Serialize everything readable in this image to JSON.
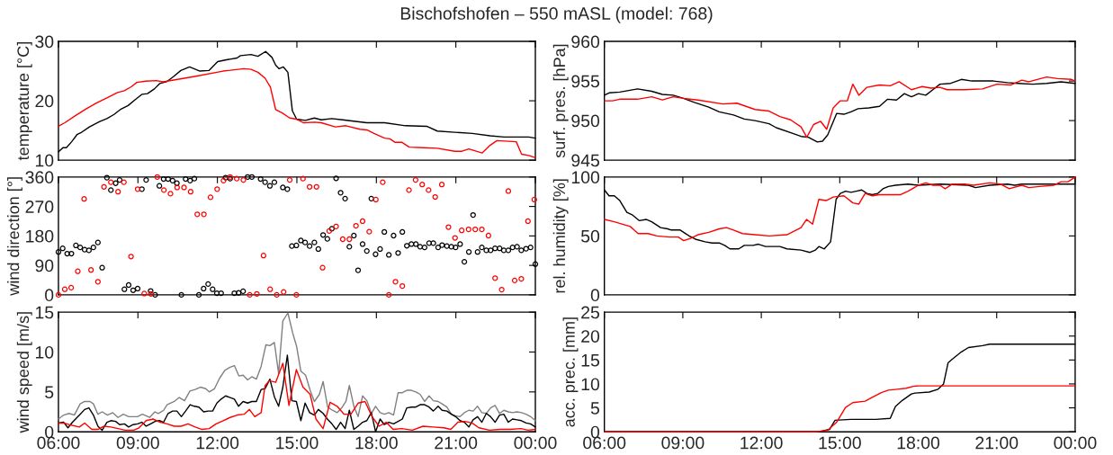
{
  "chart_data": [
    {
      "type": "line",
      "title": "Bischofshofen – 550 mASL (model: 768)",
      "ylabel": "temperature [°C]",
      "xlim": [
        6,
        24
      ],
      "xticks": [
        {
          "value": 6,
          "label": null
        },
        {
          "value": 9,
          "label": null
        },
        {
          "value": 12,
          "label": null
        },
        {
          "value": 15,
          "label": null
        },
        {
          "value": 18,
          "label": null
        },
        {
          "value": 21,
          "label": null
        },
        {
          "value": 24,
          "label": null
        }
      ],
      "ylim": [
        10,
        30
      ],
      "yticks": [
        10,
        20,
        30
      ],
      "tick_labels": "y",
      "series": [
        {
          "color": "#000000",
          "x": [
            6.0,
            6.17,
            6.3,
            6.5,
            6.7,
            6.84,
            7.17,
            7.56,
            7.83,
            8.1,
            8.36,
            8.63,
            8.9,
            9.16,
            9.36,
            9.62,
            9.82,
            10.08,
            10.35,
            10.62,
            10.95,
            11.34,
            11.68,
            12.01,
            12.34,
            12.74,
            12.87,
            13.27,
            13.53,
            13.82,
            14.06,
            14.2,
            14.33,
            14.49,
            14.66,
            14.83,
            14.99,
            15.32,
            15.66,
            15.92,
            16.32,
            16.72,
            17.64,
            18.31,
            19.1,
            19.9,
            20.3,
            20.96,
            21.62,
            22.29,
            22.82,
            23.75,
            24.0
          ],
          "values": [
            11.4,
            12.1,
            12.1,
            13.1,
            14.3,
            14.6,
            15.6,
            16.5,
            17.0,
            17.7,
            18.6,
            19.2,
            20.2,
            21.1,
            21.2,
            22.0,
            22.9,
            23.2,
            24.1,
            25.1,
            25.7,
            25.0,
            25.1,
            26.6,
            26.9,
            27.2,
            27.6,
            27.8,
            27.5,
            28.3,
            27.3,
            26.0,
            25.4,
            25.7,
            24.8,
            18.3,
            16.9,
            16.7,
            17.1,
            16.8,
            17.0,
            16.8,
            16.3,
            16.3,
            15.8,
            15.7,
            14.9,
            14.7,
            14.5,
            14.1,
            13.9,
            13.9,
            13.7
          ]
        },
        {
          "color": "#ff0000",
          "x": [
            6.0,
            6.24,
            6.64,
            7.03,
            7.43,
            7.83,
            8.23,
            8.49,
            8.76,
            8.96,
            9.29,
            9.69,
            9.95,
            11.15,
            12.21,
            13.0,
            13.27,
            13.53,
            13.8,
            14.0,
            14.2,
            14.46,
            14.73,
            14.99,
            15.26,
            15.66,
            15.92,
            16.45,
            16.85,
            17.38,
            17.64,
            17.91,
            18.31,
            18.51,
            18.71,
            18.97,
            19.24,
            19.77,
            20.3,
            20.96,
            21.23,
            21.49,
            21.99,
            22.29,
            22.55,
            23.28,
            23.48,
            23.75,
            24.0
          ],
          "values": [
            15.7,
            16.3,
            17.5,
            18.6,
            19.6,
            20.5,
            21.4,
            21.7,
            22.4,
            23.1,
            23.3,
            23.4,
            23.2,
            24.1,
            25.0,
            25.4,
            25.3,
            24.8,
            23.8,
            22.3,
            18.5,
            17.9,
            17.1,
            16.9,
            16.3,
            16.4,
            16.3,
            15.6,
            15.8,
            15.2,
            15.1,
            14.5,
            13.7,
            13.6,
            13.0,
            13.0,
            12.2,
            12.1,
            12.0,
            11.5,
            11.5,
            11.9,
            11.2,
            12.5,
            13.3,
            13.1,
            11.0,
            10.8,
            10.4
          ]
        }
      ]
    },
    {
      "type": "line",
      "ylabel": "surf. pres. [hPa]",
      "xlim": [
        6,
        24
      ],
      "xticks": [
        {
          "value": 6,
          "label": null
        },
        {
          "value": 9,
          "label": null
        },
        {
          "value": 12,
          "label": null
        },
        {
          "value": 15,
          "label": null
        },
        {
          "value": 18,
          "label": null
        },
        {
          "value": 21,
          "label": null
        },
        {
          "value": 24,
          "label": null
        }
      ],
      "ylim": [
        945,
        960
      ],
      "yticks": [
        945,
        950,
        955,
        960
      ],
      "tick_labels": "y",
      "series": [
        {
          "color": "#000000",
          "x": [
            6.0,
            6.18,
            6.59,
            7.27,
            7.81,
            8.22,
            8.63,
            9.03,
            9.44,
            9.99,
            10.39,
            10.94,
            11.35,
            11.76,
            12.3,
            12.57,
            13.18,
            13.52,
            13.8,
            14.14,
            14.34,
            14.54,
            14.88,
            15.16,
            15.43,
            15.7,
            16.11,
            16.52,
            16.83,
            17.17,
            17.47,
            17.74,
            18.01,
            18.29,
            18.56,
            18.83,
            19.24,
            19.65,
            20.05,
            20.87,
            21.41,
            21.82,
            22.37,
            22.91,
            23.46,
            24.0
          ],
          "values": [
            953.2,
            953.5,
            953.6,
            954.0,
            953.7,
            953.3,
            953.2,
            952.8,
            952.3,
            951.7,
            951.1,
            950.7,
            950.2,
            950.0,
            949.6,
            949.1,
            948.4,
            948.0,
            947.9,
            947.3,
            947.4,
            948.2,
            950.9,
            950.8,
            951.1,
            951.5,
            951.6,
            951.8,
            952.7,
            952.6,
            953.4,
            953.0,
            953.4,
            953.2,
            953.9,
            954.6,
            954.7,
            955.2,
            955.0,
            955.0,
            954.8,
            954.7,
            954.6,
            954.7,
            954.9,
            954.7
          ]
        },
        {
          "color": "#ff0000",
          "x": [
            6.0,
            6.31,
            6.59,
            7.27,
            7.81,
            8.22,
            8.63,
            9.03,
            9.58,
            10.53,
            11.07,
            11.76,
            12.3,
            12.71,
            13.12,
            13.52,
            13.74,
            14.0,
            14.27,
            14.5,
            14.75,
            15.02,
            15.29,
            15.5,
            15.73,
            16.04,
            16.52,
            16.93,
            17.27,
            17.74,
            18.15,
            18.49,
            18.83,
            19.1,
            19.78,
            20.46,
            21.01,
            21.55,
            21.96,
            22.23,
            22.91,
            23.32,
            23.86,
            24.0
          ],
          "values": [
            952.5,
            952.5,
            952.7,
            952.7,
            953.0,
            952.6,
            953.0,
            952.8,
            952.6,
            952.1,
            952.2,
            951.4,
            951.2,
            950.5,
            950.1,
            949.2,
            947.9,
            949.5,
            949.9,
            948.9,
            951.6,
            952.5,
            952.5,
            954.6,
            953.2,
            954.2,
            954.5,
            954.4,
            954.9,
            953.9,
            954.3,
            954.1,
            954.2,
            953.9,
            953.9,
            954.0,
            954.6,
            954.5,
            955.1,
            954.9,
            955.5,
            955.3,
            955.2,
            955.0
          ]
        }
      ]
    },
    {
      "type": "scatter",
      "ylabel": "wind direction [°]",
      "marker": "circle",
      "xlim": [
        6,
        24
      ],
      "xticks": [
        {
          "value": 6,
          "label": null
        },
        {
          "value": 9,
          "label": null
        },
        {
          "value": 12,
          "label": null
        },
        {
          "value": 15,
          "label": null
        },
        {
          "value": 18,
          "label": null
        },
        {
          "value": 21,
          "label": null
        },
        {
          "value": 24,
          "label": null
        }
      ],
      "ylim": [
        0,
        360
      ],
      "yticks": [
        0,
        90,
        180,
        270,
        360
      ],
      "tick_labels": "y",
      "series": [
        {
          "color": "#000000",
          "x": [
            6.0,
            6.16,
            6.33,
            6.49,
            6.66,
            6.82,
            6.99,
            7.15,
            7.32,
            7.49,
            7.65,
            7.83,
            7.98,
            8.16,
            8.31,
            8.49,
            8.65,
            8.82,
            8.99,
            9.15,
            9.31,
            9.48,
            9.65,
            9.81,
            9.97,
            10.14,
            10.31,
            10.47,
            10.64,
            10.8,
            10.97,
            11.13,
            11.3,
            11.48,
            11.65,
            11.82,
            11.98,
            12.14,
            12.31,
            12.48,
            12.64,
            12.8,
            12.97,
            13.14,
            13.3,
            13.63,
            13.8,
            13.98,
            14.15,
            14.47,
            14.64,
            14.81,
            14.98,
            15.15,
            15.31,
            15.48,
            15.66,
            15.81,
            15.99,
            16.15,
            16.32,
            16.48,
            16.65,
            16.82,
            16.98,
            17.15,
            17.31,
            17.48,
            17.64,
            17.81,
            17.97,
            18.14,
            18.3,
            18.47,
            18.65,
            18.82,
            18.98,
            19.15,
            19.32,
            19.49,
            19.65,
            19.82,
            19.99,
            20.15,
            20.33,
            20.48,
            20.66,
            20.83,
            20.99,
            21.16,
            21.32,
            21.49,
            21.65,
            21.82,
            21.98,
            22.15,
            22.31,
            22.48,
            22.65,
            22.81,
            22.98,
            23.14,
            23.31,
            23.47,
            23.65,
            23.82,
            24.0
          ],
          "values": [
            131,
            142,
            126,
            126,
            151,
            145,
            138,
            136,
            145,
            160,
            83,
            358,
            320,
            341,
            351,
            17,
            30,
            14,
            19,
            323,
            351,
            12,
            0,
            333,
            354,
            354,
            349,
            341,
            0,
            354,
            349,
            355,
            0,
            19,
            33,
            17,
            5,
            5,
            358,
            355,
            5,
            6,
            11,
            360,
            360,
            354,
            344,
            333,
            344,
            328,
            323,
            149,
            151,
            166,
            160,
            149,
            160,
            140,
            183,
            171,
            202,
            356,
            312,
            294,
            147,
            181,
            75,
            155,
            134,
            294,
            124,
            140,
            192,
            122,
            181,
            128,
            192,
            150,
            155,
            155,
            147,
            145,
            158,
            158,
            145,
            152,
            149,
            147,
            145,
            155,
            101,
            131,
            244,
            131,
            145,
            136,
            136,
            142,
            142,
            136,
            136,
            145,
            147,
            136,
            141,
            145,
            94
          ]
        },
        {
          "color": "#ff0000",
          "x": [
            6.0,
            6.24,
            6.48,
            6.73,
            6.97,
            7.23,
            7.49,
            7.72,
            7.98,
            8.25,
            8.47,
            8.74,
            8.99,
            9.24,
            9.49,
            9.73,
            9.98,
            10.23,
            10.48,
            10.74,
            10.99,
            11.24,
            11.49,
            11.74,
            11.99,
            12.23,
            12.48,
            12.73,
            12.98,
            13.22,
            13.49,
            13.74,
            13.99,
            14.24,
            14.5,
            14.73,
            14.98,
            15.23,
            15.48,
            15.74,
            15.97,
            16.22,
            16.48,
            16.73,
            16.98,
            17.23,
            17.48,
            17.73,
            17.98,
            18.24,
            18.47,
            18.72,
            18.98,
            19.23,
            19.48,
            19.73,
            19.97,
            20.22,
            20.47,
            20.72,
            20.97,
            21.22,
            21.48,
            21.73,
            21.98,
            22.23,
            22.48,
            22.73,
            22.98,
            23.22,
            23.47,
            23.72,
            23.96
          ],
          "values": [
            0,
            17,
            22,
            72,
            293,
            76,
            40,
            330,
            344,
            315,
            344,
            117,
            323,
            4,
            3,
            360,
            320,
            309,
            328,
            328,
            315,
            246,
            246,
            298,
            323,
            349,
            360,
            355,
            351,
            0,
            3,
            120,
            17,
            0,
            9,
            351,
            0,
            355,
            330,
            330,
            83,
            195,
            209,
            170,
            170,
            211,
            225,
            193,
            291,
            344,
            0,
            40,
            27,
            320,
            351,
            337,
            320,
            299,
            337,
            207,
            174,
            197,
            200,
            200,
            200,
            181,
            51,
            16,
            317,
            44,
            49,
            225,
            291
          ]
        }
      ]
    },
    {
      "type": "line",
      "ylabel": "rel. humidity [%]",
      "xlim": [
        6,
        24
      ],
      "xticks": [
        {
          "value": 6,
          "label": null
        },
        {
          "value": 9,
          "label": null
        },
        {
          "value": 12,
          "label": null
        },
        {
          "value": 15,
          "label": null
        },
        {
          "value": 18,
          "label": null
        },
        {
          "value": 21,
          "label": null
        },
        {
          "value": 24,
          "label": null
        }
      ],
      "ylim": [
        0,
        100
      ],
      "yticks": [
        0,
        50,
        100
      ],
      "tick_labels": "y",
      "series": [
        {
          "color": "#000000",
          "x": [
            6.0,
            6.18,
            6.38,
            6.59,
            6.86,
            7.06,
            7.33,
            7.61,
            7.81,
            8.15,
            8.42,
            8.56,
            8.9,
            9.24,
            9.51,
            9.85,
            10.12,
            10.39,
            10.6,
            10.8,
            11.14,
            11.35,
            11.69,
            11.89,
            12.16,
            12.71,
            12.98,
            13.52,
            13.86,
            14.07,
            14.2,
            14.41,
            14.65,
            14.86,
            15.02,
            15.22,
            15.43,
            15.63,
            15.84,
            16.04,
            16.24,
            16.45,
            16.65,
            16.86,
            17.13,
            17.61,
            18.01,
            18.83,
            19.92,
            20.19,
            20.73,
            21.41,
            21.69,
            21.96,
            22.64,
            23.18,
            24.0
          ],
          "values": [
            89,
            84,
            84,
            80,
            70,
            68,
            63,
            64,
            62,
            57,
            56,
            55,
            55,
            50,
            47,
            45,
            44,
            44,
            42,
            39,
            39,
            42,
            42,
            43,
            41,
            41,
            39,
            38,
            36,
            38,
            41,
            39,
            45,
            81,
            86,
            88,
            87,
            88,
            89,
            86,
            85,
            86,
            90,
            92,
            93,
            94,
            93,
            94,
            93,
            91,
            93,
            94,
            93,
            94,
            94,
            94,
            94
          ]
        },
        {
          "color": "#ff0000",
          "x": [
            6.0,
            6.38,
            6.99,
            7.29,
            7.67,
            8.01,
            8.49,
            8.83,
            9.03,
            9.31,
            9.58,
            9.99,
            10.39,
            10.67,
            10.94,
            11.28,
            11.76,
            12.3,
            12.98,
            13.25,
            13.52,
            13.73,
            13.96,
            14.2,
            14.48,
            14.75,
            15.16,
            15.5,
            15.73,
            15.97,
            16.24,
            16.52,
            17.33,
            17.61,
            18.01,
            18.29,
            18.56,
            18.83,
            19.03,
            19.31,
            19.78,
            20.12,
            20.73,
            21.14,
            21.48,
            21.96,
            22.23,
            22.64,
            23.18,
            23.46,
            23.73,
            24.0
          ],
          "values": [
            64,
            62,
            58,
            52,
            52,
            50,
            49,
            49,
            46,
            48,
            51,
            53,
            56,
            57,
            55,
            52,
            51,
            50,
            51,
            54,
            57,
            64,
            60,
            81,
            80,
            83,
            84,
            78,
            77,
            86,
            84,
            85,
            85,
            88,
            93,
            95,
            93,
            93,
            90,
            94,
            94,
            93,
            95,
            94,
            90,
            93,
            91,
            92,
            93,
            96,
            96,
            100
          ]
        }
      ]
    },
    {
      "type": "line",
      "ylabel": "wind speed [m/s]",
      "xlim": [
        6,
        24
      ],
      "xticks": [
        {
          "value": 6,
          "label": "06:00"
        },
        {
          "value": 9,
          "label": "09:00"
        },
        {
          "value": 12,
          "label": "12:00"
        },
        {
          "value": 15,
          "label": "15:00"
        },
        {
          "value": 18,
          "label": "18:00"
        },
        {
          "value": 21,
          "label": "21:00"
        },
        {
          "value": 24,
          "label": "00:00"
        }
      ],
      "ylim": [
        0,
        15
      ],
      "yticks": [
        0,
        5,
        10,
        15
      ],
      "series": [
        {
          "color": "#808080",
          "x": [
            6.0,
            6.2,
            6.4,
            6.6,
            6.82,
            6.99,
            7.19,
            7.32,
            7.49,
            7.65,
            7.85,
            8.05,
            8.25,
            8.45,
            8.65,
            8.98,
            9.17,
            9.44,
            9.64,
            9.77,
            9.97,
            10.1,
            10.37,
            10.56,
            10.76,
            10.96,
            11.16,
            11.36,
            11.56,
            11.69,
            11.89,
            12.08,
            12.28,
            12.48,
            12.64,
            12.81,
            12.97,
            13.14,
            13.3,
            13.47,
            13.65,
            13.83,
            13.98,
            14.15,
            14.31,
            14.47,
            14.66,
            14.84,
            14.99,
            15.15,
            15.33,
            15.5,
            15.66,
            15.85,
            15.99,
            16.16,
            16.34,
            16.52,
            16.69,
            16.85,
            16.98,
            17.15,
            17.31,
            17.48,
            17.64,
            17.81,
            17.97,
            18.14,
            18.3,
            18.47,
            18.65,
            18.82,
            18.98,
            19.15,
            19.32,
            19.49,
            19.65,
            19.82,
            19.99,
            20.15,
            20.33,
            20.48,
            20.66,
            20.83,
            20.99,
            21.16,
            21.32,
            21.49,
            21.65,
            21.82,
            21.98,
            22.15,
            22.31,
            22.48,
            22.65,
            22.81,
            22.98,
            23.14,
            23.31,
            23.47,
            23.65,
            23.82,
            24.0
          ],
          "values": [
            1.6,
            2.1,
            2.3,
            2.1,
            3.5,
            3.8,
            3.8,
            3.5,
            2.2,
            2.5,
            2.1,
            2.4,
            1.8,
            2.2,
            1.9,
            1.9,
            2.2,
            1.8,
            2.5,
            2.3,
            2.7,
            3.4,
            3.8,
            4.3,
            3.9,
            5.1,
            5.3,
            5.6,
            5.4,
            5.0,
            5.4,
            6.7,
            7.7,
            8.1,
            8.3,
            7.0,
            7.1,
            6.5,
            6.9,
            6.6,
            8.2,
            10.9,
            10.8,
            11.2,
            7.3,
            13.9,
            14.9,
            12.4,
            10.7,
            7.6,
            7.1,
            5.2,
            3.8,
            4.7,
            6.3,
            3.1,
            2.7,
            2.4,
            3.0,
            3.8,
            5.8,
            3.2,
            1.9,
            4.5,
            3.9,
            2.3,
            3.2,
            2.4,
            2.2,
            2.4,
            2.1,
            4.9,
            4.9,
            5.2,
            5.2,
            5.0,
            4.7,
            3.8,
            4.5,
            3.9,
            3.8,
            3.5,
            3.1,
            2.2,
            2.0,
            1.9,
            2.4,
            2.7,
            2.6,
            3.2,
            2.4,
            2.3,
            3.0,
            3.3,
            2.3,
            2.7,
            2.5,
            2.4,
            2.5,
            2.4,
            2.2,
            1.9,
            1.4
          ]
        },
        {
          "color": "#000000",
          "x": [
            6.0,
            6.2,
            6.36,
            6.53,
            6.82,
            6.99,
            7.15,
            7.32,
            7.49,
            7.65,
            7.83,
            7.98,
            8.16,
            8.31,
            8.49,
            8.65,
            8.82,
            8.99,
            9.15,
            9.31,
            9.48,
            9.65,
            9.81,
            9.97,
            10.14,
            10.31,
            10.47,
            10.64,
            10.8,
            10.97,
            11.13,
            11.3,
            11.48,
            11.65,
            11.82,
            11.98,
            12.14,
            12.31,
            12.48,
            12.64,
            12.8,
            12.97,
            13.14,
            13.3,
            13.47,
            13.65,
            13.8,
            13.98,
            14.15,
            14.31,
            14.47,
            14.64,
            14.81,
            14.98,
            15.15,
            15.31,
            15.48,
            15.66,
            15.81,
            15.99,
            16.15,
            16.32,
            16.48,
            16.65,
            16.82,
            16.98,
            17.15,
            17.31,
            17.48,
            17.64,
            17.81,
            17.97,
            18.14,
            18.3,
            18.47,
            18.65,
            18.82,
            18.98,
            19.15,
            19.32,
            19.49,
            19.65,
            19.82,
            19.99,
            20.15,
            20.33,
            20.48,
            20.66,
            20.83,
            20.99,
            21.16,
            21.32,
            21.49,
            21.65,
            21.82,
            21.98,
            22.15,
            22.31,
            22.48,
            22.65,
            22.81,
            22.98,
            23.14,
            23.31,
            23.47,
            23.65,
            23.82,
            24.0
          ],
          "values": [
            1.1,
            1.2,
            0.5,
            1.2,
            2.2,
            2.8,
            3.0,
            2.1,
            0.7,
            0.2,
            1.2,
            1.4,
            1.3,
            0.9,
            1.0,
            0.6,
            0.9,
            1.0,
            1.2,
            0.7,
            1.0,
            1.3,
            1.4,
            1.2,
            2.3,
            2.6,
            2.6,
            1.9,
            2.6,
            3.4,
            3.2,
            3.1,
            2.5,
            2.6,
            2.6,
            3.6,
            4.1,
            4.5,
            4.3,
            4.1,
            3.2,
            3.8,
            3.6,
            3.8,
            3.8,
            5.3,
            5.4,
            6.6,
            4.4,
            3.2,
            5.6,
            9.6,
            3.9,
            3.8,
            1.4,
            3.6,
            2.4,
            2.1,
            2.8,
            2.3,
            1.6,
            1.0,
            0.3,
            1.2,
            0.4,
            2.7,
            0.3,
            0.7,
            1.2,
            1.4,
            2.4,
            0.0,
            1.6,
            0.9,
            1.2,
            1.0,
            1.3,
            1.6,
            3.0,
            3.1,
            3.1,
            3.4,
            3.4,
            3.1,
            2.6,
            3.2,
            2.7,
            2.6,
            2.2,
            1.9,
            1.4,
            1.2,
            0.6,
            1.5,
            1.9,
            1.2,
            2.3,
            1.9,
            1.2,
            2.1,
            2.2,
            1.2,
            1.6,
            1.5,
            1.4,
            1.1,
            1.0,
            0.6
          ]
        },
        {
          "color": "#ff0000",
          "x": [
            6.0,
            6.2,
            6.4,
            6.79,
            6.99,
            7.26,
            7.49,
            7.72,
            7.98,
            8.25,
            8.51,
            8.84,
            9.04,
            9.31,
            9.57,
            9.84,
            10.1,
            10.37,
            10.63,
            10.89,
            11.16,
            11.42,
            11.69,
            11.95,
            12.22,
            12.48,
            12.75,
            13.01,
            13.21,
            13.41,
            13.65,
            13.8,
            13.96,
            14.2,
            14.47,
            14.7,
            14.98,
            15.23,
            15.5,
            15.72,
            15.99,
            16.25,
            16.52,
            16.78,
            17.04,
            17.31,
            17.57,
            17.84,
            18.1,
            18.37,
            18.63,
            18.96,
            19.36,
            19.76,
            20.15,
            20.55,
            20.81,
            21.08,
            21.34,
            21.61,
            21.87,
            22.27,
            22.67,
            23.06,
            23.46,
            23.72,
            24.0
          ],
          "values": [
            1.1,
            1.1,
            0.9,
            0.6,
            1.1,
            0.3,
            0.3,
            0.7,
            0.6,
            0.4,
            0.2,
            0.2,
            0.5,
            1.4,
            1.6,
            1.2,
            1.0,
            0.7,
            0.7,
            1.0,
            0.6,
            0.3,
            0.4,
            1.0,
            1.4,
            1.8,
            2.1,
            2.2,
            2.8,
            1.9,
            2.4,
            5.8,
            6.4,
            6.2,
            8.6,
            3.3,
            7.8,
            5.6,
            4.7,
            1.6,
            0.4,
            3.7,
            3.2,
            2.2,
            2.2,
            3.6,
            3.8,
            1.9,
            0.7,
            1.2,
            0.3,
            0.4,
            0.2,
            0.7,
            0.6,
            0.5,
            0.3,
            1.2,
            1.3,
            1.1,
            0.5,
            0.2,
            0.3,
            0.3,
            0.4,
            0.2,
            0.3
          ]
        }
      ]
    },
    {
      "type": "line",
      "ylabel": "acc. prec. [mm]",
      "xlim": [
        6,
        24
      ],
      "xticks": [
        {
          "value": 6,
          "label": "06:00"
        },
        {
          "value": 9,
          "label": "09:00"
        },
        {
          "value": 12,
          "label": "12:00"
        },
        {
          "value": 15,
          "label": "15:00"
        },
        {
          "value": 18,
          "label": "18:00"
        },
        {
          "value": 21,
          "label": "21:00"
        },
        {
          "value": 24,
          "label": "00:00"
        }
      ],
      "ylim": [
        0,
        25
      ],
      "yticks": [
        0,
        5,
        10,
        15,
        20,
        25
      ],
      "series": [
        {
          "color": "#000000",
          "x": [
            6.0,
            14.2,
            14.61,
            14.82,
            15.43,
            16.38,
            16.93,
            17.13,
            17.4,
            17.74,
            17.88,
            18.42,
            18.76,
            18.97,
            19.14,
            19.31,
            19.65,
            19.92,
            20.46,
            20.73,
            21.82,
            24.0
          ],
          "values": [
            0,
            0,
            0.5,
            2.4,
            2.6,
            2.6,
            2.8,
            5.3,
            6.6,
            7.9,
            8.1,
            8.3,
            8.9,
            10.0,
            14.4,
            15.2,
            16.7,
            17.6,
            18.0,
            18.3,
            18.3,
            18.3
          ]
        },
        {
          "color": "#ff0000",
          "x": [
            6.0,
            14.07,
            14.54,
            14.88,
            15.22,
            15.5,
            15.97,
            16.24,
            16.59,
            16.86,
            17.2,
            17.54,
            17.81,
            18.01,
            24.0
          ],
          "values": [
            0,
            0,
            0.3,
            2.0,
            5.1,
            6.1,
            6.4,
            7.2,
            8.2,
            8.7,
            8.9,
            9.1,
            9.5,
            9.6,
            9.6
          ]
        }
      ]
    }
  ]
}
